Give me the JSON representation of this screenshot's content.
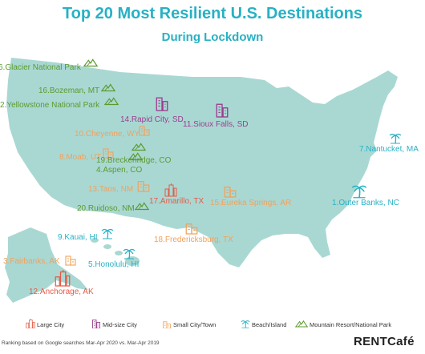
{
  "title": "Top 20 Most Resilient U.S. Destinations",
  "subtitle": "During Lockdown",
  "colors": {
    "map_fill": "#a9d8d3",
    "large_city": "#e65a45",
    "midsize_city": "#9b3f8e",
    "small_city": "#f2a15a",
    "beach": "#27b1c4",
    "mountain": "#5c9a2f"
  },
  "destinations": [
    {
      "label": "6.Glacier National Park",
      "category": "mountain"
    },
    {
      "label": "16.Bozeman, MT",
      "category": "mountain"
    },
    {
      "label": "2.Yellowstone National Park",
      "category": "mountain"
    },
    {
      "label": "14.Rapid City, SD",
      "category": "midsize"
    },
    {
      "label": "11.Sioux Falls, SD",
      "category": "midsize"
    },
    {
      "label": "10.Cheyenne, WY",
      "category": "small"
    },
    {
      "label": "8.Moab, UT",
      "category": "small"
    },
    {
      "label": "19.Breckenridge, CO",
      "category": "mountain"
    },
    {
      "label": "4.Aspen, CO",
      "category": "mountain"
    },
    {
      "label": "13.Taos, NM",
      "category": "small"
    },
    {
      "label": "20.Ruidoso, NM",
      "category": "mountain"
    },
    {
      "label": "17.Amarillo, TX",
      "category": "large"
    },
    {
      "label": "15.Eureka Springs, AR",
      "category": "small"
    },
    {
      "label": "18.Fredericksburg, TX",
      "category": "small"
    },
    {
      "label": "7.Nantucket, MA",
      "category": "beach"
    },
    {
      "label": "1.Outer Banks, NC",
      "category": "beach"
    },
    {
      "label": "9.Kauai, HI",
      "category": "beach"
    },
    {
      "label": "5.Honolulu, HI",
      "category": "beach"
    },
    {
      "label": "3.Fairbanks, AK",
      "category": "small"
    },
    {
      "label": "12.Anchorage, AK",
      "category": "large"
    }
  ],
  "legend": {
    "large": "Large City",
    "midsize": "Mid-size City",
    "small": "Small City/Town",
    "beach": "Beach/Island",
    "mountain": "Mountain Resort/National Park"
  },
  "footnote": "Ranking based on Google searches Mar-Apr 2020 vs. Mar-Apr 2019",
  "brand": "RENTCafé"
}
